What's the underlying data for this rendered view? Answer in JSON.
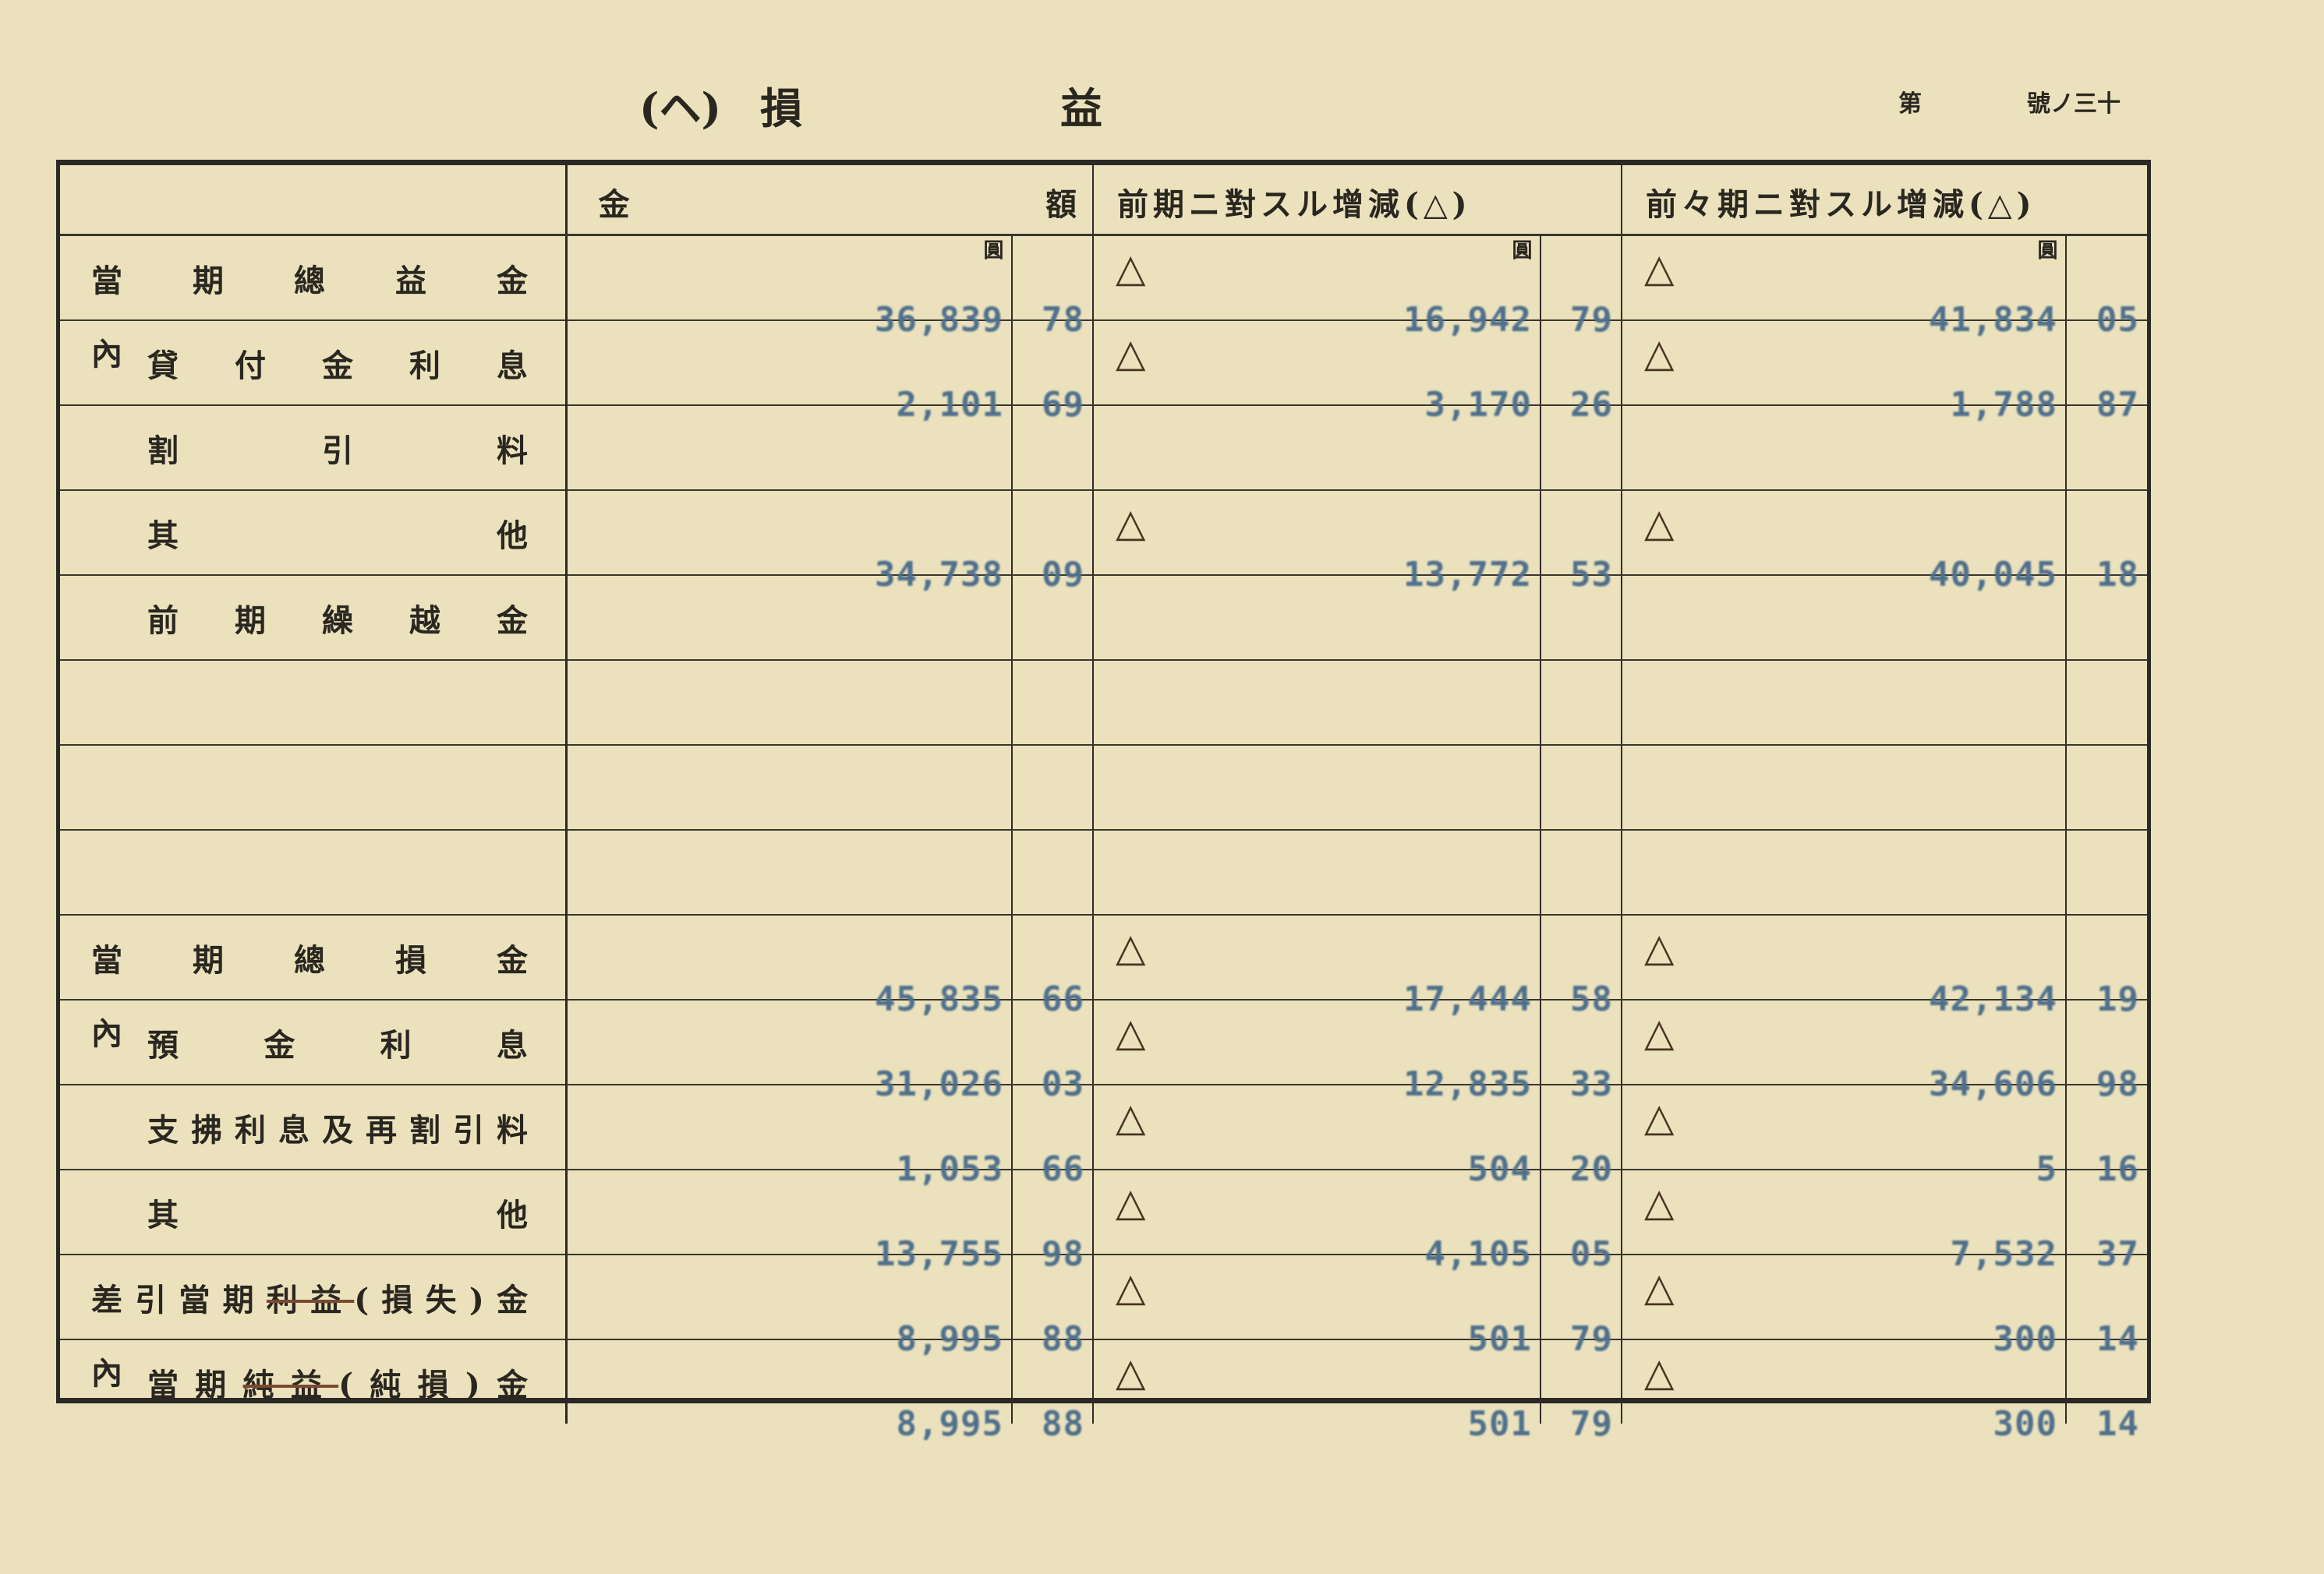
{
  "title": {
    "mark": "(ヘ)",
    "char1": "損",
    "char2": "益"
  },
  "page_number": {
    "part1": "第",
    "part2": "號ノ三十"
  },
  "headers": {
    "amount_left": "金",
    "amount_right": "額",
    "prior": "前期ニ對スル增減(△)",
    "pre_prior": "前々期ニ對スル增減(△)",
    "yen_unit": "圓"
  },
  "negative_mark": "△",
  "rows": [
    {
      "prefix": "",
      "label": [
        {
          "t": "當期總益金"
        }
      ],
      "amount": [
        "36,839",
        "78"
      ],
      "prior": [
        "16,942",
        "79"
      ],
      "prior_neg": true,
      "pre": [
        "41,834",
        "05"
      ],
      "pre_neg": true
    },
    {
      "prefix": "內",
      "label": [
        {
          "t": "貸付金利息"
        }
      ],
      "amount": [
        "2,101",
        "69"
      ],
      "prior": [
        "3,170",
        "26"
      ],
      "prior_neg": true,
      "pre": [
        "1,788",
        "87"
      ],
      "pre_neg": true
    },
    {
      "prefix": "",
      "label": [
        {
          "t": "割引料"
        }
      ],
      "amount": null,
      "prior": null,
      "pre": null
    },
    {
      "prefix": "",
      "label": [
        {
          "t": "其他"
        }
      ],
      "amount": [
        "34,738",
        "09"
      ],
      "prior": [
        "13,772",
        "53"
      ],
      "prior_neg": true,
      "pre": [
        "40,045",
        "18"
      ],
      "pre_neg": true
    },
    {
      "prefix": "",
      "label": [
        {
          "t": "前期繰越金"
        }
      ],
      "amount": null,
      "prior": null,
      "pre": null
    },
    {
      "prefix": "",
      "label": [],
      "amount": null,
      "prior": null,
      "pre": null
    },
    {
      "prefix": "",
      "label": [],
      "amount": null,
      "prior": null,
      "pre": null
    },
    {
      "prefix": "",
      "label": [],
      "amount": null,
      "prior": null,
      "pre": null
    },
    {
      "prefix": "",
      "label": [
        {
          "t": "當期總損金"
        }
      ],
      "amount": [
        "45,835",
        "66"
      ],
      "prior": [
        "17,444",
        "58"
      ],
      "prior_neg": true,
      "pre": [
        "42,134",
        "19"
      ],
      "pre_neg": true
    },
    {
      "prefix": "內",
      "label": [
        {
          "t": "預金利息"
        }
      ],
      "amount": [
        "31,026",
        "03"
      ],
      "prior": [
        "12,835",
        "33"
      ],
      "prior_neg": true,
      "pre": [
        "34,606",
        "98"
      ],
      "pre_neg": true
    },
    {
      "prefix": "",
      "label": [
        {
          "t": "支拂利息及再割引料"
        }
      ],
      "amount": [
        "1,053",
        "66"
      ],
      "prior": [
        "504",
        "20"
      ],
      "prior_neg": true,
      "pre": [
        "5",
        "16"
      ],
      "pre_neg": true
    },
    {
      "prefix": "",
      "label": [
        {
          "t": "其他"
        }
      ],
      "amount": [
        "13,755",
        "98"
      ],
      "prior": [
        "4,105",
        "05"
      ],
      "prior_neg": true,
      "pre": [
        "7,532",
        "37"
      ],
      "pre_neg": true
    },
    {
      "prefix": "",
      "label": [
        {
          "t": "差引當期"
        },
        {
          "t": "利益",
          "s": true
        },
        {
          "t": "(損失)金"
        }
      ],
      "amount": [
        "8,995",
        "88"
      ],
      "prior": [
        "501",
        "79"
      ],
      "prior_neg": true,
      "pre": [
        "300",
        "14"
      ],
      "pre_neg": true
    },
    {
      "prefix": "內",
      "label": [
        {
          "t": "當期"
        },
        {
          "t": "純益",
          "s": true
        },
        {
          "t": "(純損)金"
        }
      ],
      "amount": [
        "8,995",
        "88"
      ],
      "prior": [
        "501",
        "79"
      ],
      "prior_neg": true,
      "pre": [
        "300",
        "14"
      ],
      "pre_neg": true
    }
  ]
}
